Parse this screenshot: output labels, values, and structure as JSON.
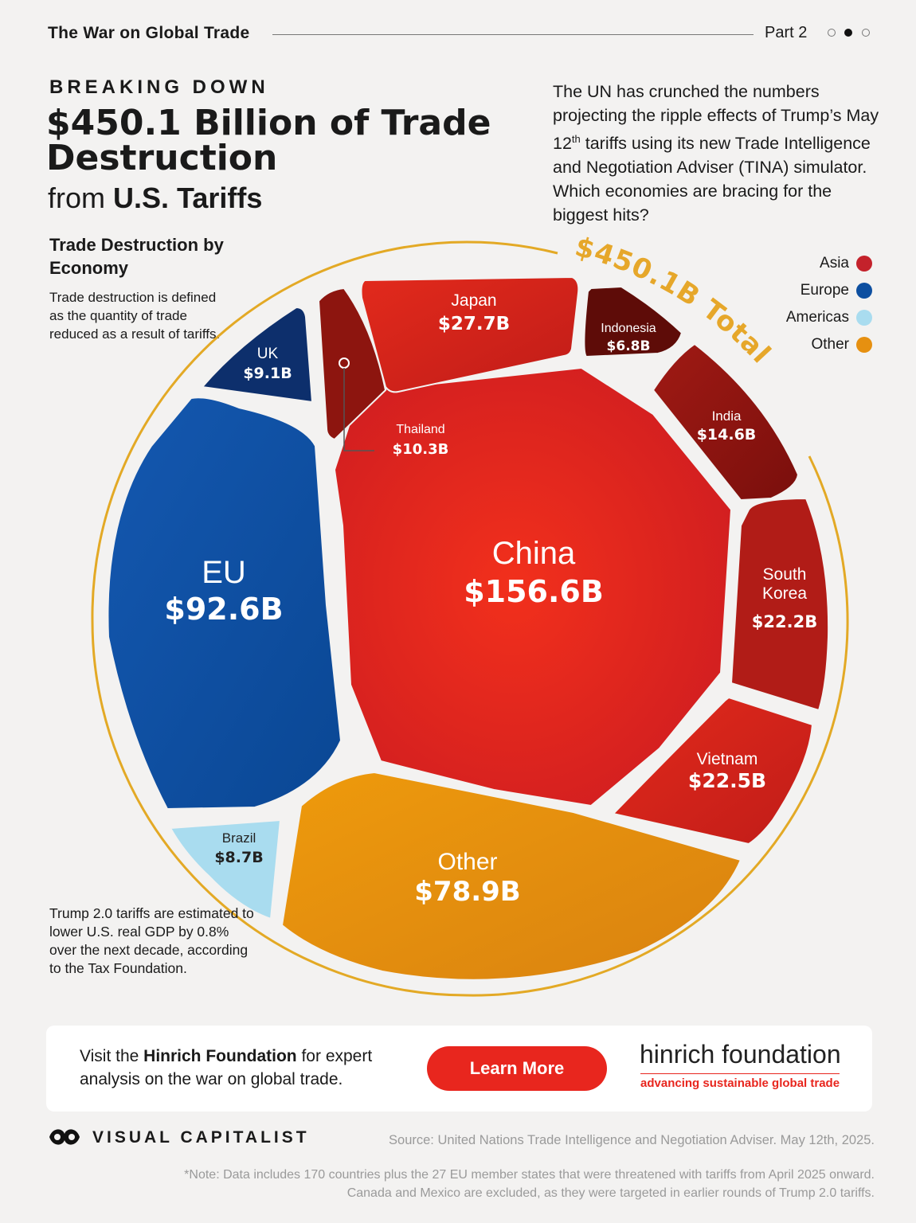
{
  "header": {
    "series_title": "The War on Global Trade",
    "part": "Part 2"
  },
  "title": {
    "kicker": "BREAKING DOWN",
    "headline": "$450.1 Billion of Trade Destruction",
    "subhead_prefix": "from ",
    "subhead_bold": "U.S. Tariffs"
  },
  "intro": {
    "part1": "The UN has crunched the numbers projecting the ripple effects of Trump’s May 12",
    "sup": "th",
    "part2": " tariffs using its new Trade Intelligence and Negotiation Adviser (TINA) simulator. Which economies are bracing for the biggest hits?"
  },
  "legend_block": {
    "title": "Trade Destruction by Economy",
    "description": "Trade destruction is defined as the quantity of trade reduced as a result of tariffs."
  },
  "legend": [
    {
      "label": "Asia",
      "color": "#c4222b"
    },
    {
      "label": "Europe",
      "color": "#0d4fa0"
    },
    {
      "label": "Americas",
      "color": "#a9dcef"
    },
    {
      "label": "Other",
      "color": "#e69010"
    }
  ],
  "footnote_gdp": "Trump 2.0 tariffs are estimated to lower U.S. real GDP by 0.8% over the next decade, according to the Tax Foundation.",
  "chart_data": {
    "type": "voronoi-treemap",
    "title": "Trade Destruction by Economy",
    "unit": "USD billions",
    "total": 450.1,
    "total_label": "$450.1B Total",
    "regions": [
      "Asia",
      "Europe",
      "Americas",
      "Other"
    ],
    "cells": [
      {
        "name": "China",
        "value": 156.6,
        "label": "$156.6B",
        "region": "Asia"
      },
      {
        "name": "EU",
        "value": 92.6,
        "label": "$92.6B",
        "region": "Europe"
      },
      {
        "name": "Other",
        "value": 78.9,
        "label": "$78.9B",
        "region": "Other"
      },
      {
        "name": "Japan",
        "value": 27.7,
        "label": "$27.7B",
        "region": "Asia"
      },
      {
        "name": "Vietnam",
        "value": 22.5,
        "label": "$22.5B",
        "region": "Asia"
      },
      {
        "name": "South Korea",
        "value": 22.2,
        "label": "$22.2B",
        "region": "Asia"
      },
      {
        "name": "India",
        "value": 14.6,
        "label": "$14.6B",
        "region": "Asia"
      },
      {
        "name": "Thailand",
        "value": 10.3,
        "label": "$10.3B",
        "region": "Asia"
      },
      {
        "name": "UK",
        "value": 9.1,
        "label": "$9.1B",
        "region": "Europe"
      },
      {
        "name": "Brazil",
        "value": 8.7,
        "label": "$8.7B",
        "region": "Americas"
      },
      {
        "name": "Indonesia",
        "value": 6.8,
        "label": "$6.8B",
        "region": "Asia"
      }
    ]
  },
  "cta": {
    "text_prefix": "Visit the ",
    "text_bold": "Hinrich Foundation",
    "text_suffix": " for expert analysis on the war on global trade.",
    "button": "Learn More",
    "partner_name": "hinrich foundation",
    "partner_tagline": "advancing sustainable global trade"
  },
  "footer": {
    "brand": "VISUAL CAPITALIST",
    "source": "Source: United Nations Trade Intelligence and Negotiation Adviser. May 12th, 2025.",
    "note_line1": "*Note: Data includes 170 countries plus the 27 EU member states that were threatened with tariffs from April 2025 onward.",
    "note_line2": "Canada and Mexico are excluded, as they were targeted in earlier rounds of Trump 2.0 tariffs."
  }
}
